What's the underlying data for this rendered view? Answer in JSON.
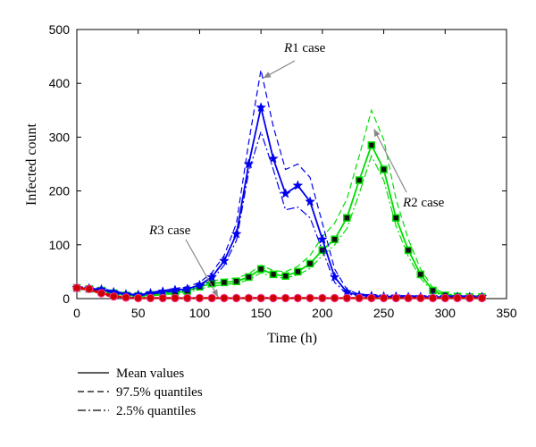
{
  "chart_data": {
    "type": "line",
    "xlabel": "Time (h)",
    "ylabel": "Infected count",
    "xlim": [
      0,
      350
    ],
    "ylim": [
      0,
      500
    ],
    "xticks": [
      "0",
      "50",
      "100",
      "150",
      "200",
      "250",
      "300",
      "350"
    ],
    "yticks": [
      "0",
      "100",
      "200",
      "300",
      "400",
      "500"
    ],
    "grid": false,
    "x": [
      0,
      10,
      20,
      30,
      40,
      50,
      60,
      70,
      80,
      90,
      100,
      110,
      120,
      130,
      140,
      150,
      160,
      170,
      180,
      190,
      200,
      210,
      220,
      230,
      240,
      250,
      260,
      270,
      280,
      290,
      300,
      310,
      320,
      330
    ],
    "series": [
      {
        "case": "R1",
        "color": "#0000ee",
        "marker": "star",
        "mean": [
          20,
          19,
          17,
          12,
          8,
          7,
          10,
          13,
          16,
          18,
          25,
          40,
          70,
          120,
          250,
          355,
          260,
          195,
          210,
          180,
          110,
          40,
          12,
          6,
          5,
          4,
          4,
          3,
          3,
          3,
          3,
          3,
          3,
          3
        ],
        "upper": [
          22,
          21,
          19,
          14,
          10,
          9,
          12,
          15,
          19,
          22,
          30,
          48,
          80,
          140,
          290,
          425,
          320,
          240,
          250,
          225,
          140,
          55,
          17,
          8,
          7,
          6,
          6,
          5,
          5,
          5,
          5,
          5,
          5,
          5
        ],
        "lower": [
          18,
          17,
          15,
          10,
          6,
          5,
          8,
          11,
          14,
          15,
          21,
          34,
          62,
          108,
          235,
          310,
          240,
          165,
          170,
          150,
          90,
          30,
          9,
          4,
          3,
          3,
          2,
          2,
          2,
          2,
          2,
          2,
          2,
          2
        ]
      },
      {
        "case": "R2",
        "color": "#00dd00",
        "marker": "square",
        "mean": [
          20,
          18,
          15,
          10,
          6,
          5,
          7,
          9,
          11,
          14,
          22,
          28,
          30,
          32,
          40,
          55,
          45,
          42,
          50,
          65,
          90,
          110,
          150,
          220,
          285,
          240,
          150,
          90,
          45,
          15,
          6,
          4,
          3,
          3
        ],
        "upper": [
          22,
          20,
          17,
          12,
          8,
          7,
          9,
          11,
          14,
          17,
          26,
          33,
          36,
          38,
          46,
          62,
          52,
          50,
          60,
          80,
          115,
          140,
          185,
          265,
          350,
          295,
          185,
          110,
          55,
          20,
          9,
          6,
          5,
          5
        ],
        "lower": [
          18,
          16,
          13,
          8,
          4,
          3,
          5,
          7,
          9,
          11,
          18,
          23,
          26,
          28,
          35,
          48,
          40,
          38,
          44,
          56,
          80,
          100,
          130,
          195,
          265,
          220,
          135,
          78,
          38,
          12,
          4,
          3,
          2,
          2
        ]
      },
      {
        "case": "R3",
        "color": "#cc0000",
        "marker": "circle",
        "mean": [
          20,
          18,
          10,
          4,
          2,
          1,
          1,
          1,
          1,
          1,
          1,
          1,
          1,
          1,
          1,
          1,
          1,
          1,
          1,
          1,
          1,
          1,
          1,
          1,
          1,
          1,
          1,
          1,
          1,
          1,
          1,
          1,
          1,
          1
        ],
        "upper": [
          22,
          20,
          12,
          6,
          3,
          2,
          2,
          2,
          2,
          2,
          2,
          2,
          2,
          2,
          2,
          2,
          2,
          2,
          2,
          2,
          2,
          2,
          2,
          2,
          2,
          2,
          2,
          2,
          2,
          2,
          2,
          2,
          2,
          2
        ],
        "lower": [
          18,
          16,
          8,
          2,
          1,
          0,
          0,
          0,
          0,
          0,
          0,
          0,
          0,
          0,
          0,
          0,
          0,
          0,
          0,
          0,
          0,
          0,
          0,
          0,
          0,
          0,
          0,
          0,
          0,
          0,
          0,
          0,
          0,
          0
        ]
      }
    ],
    "annotations": [
      {
        "italic": "R",
        "rest": "1 case",
        "target": [
          152,
          410
        ]
      },
      {
        "italic": "R",
        "rest": "2 case",
        "target": [
          242,
          315
        ]
      },
      {
        "italic": "R",
        "rest": "3 case",
        "target": [
          115,
          3
        ]
      }
    ],
    "legend": {
      "placement": "below",
      "entries": [
        {
          "style": "solid",
          "label": "Mean values"
        },
        {
          "style": "dashed",
          "label": "97.5% quantiles"
        },
        {
          "style": "dashdot",
          "label": "2.5% quantiles"
        }
      ]
    }
  }
}
